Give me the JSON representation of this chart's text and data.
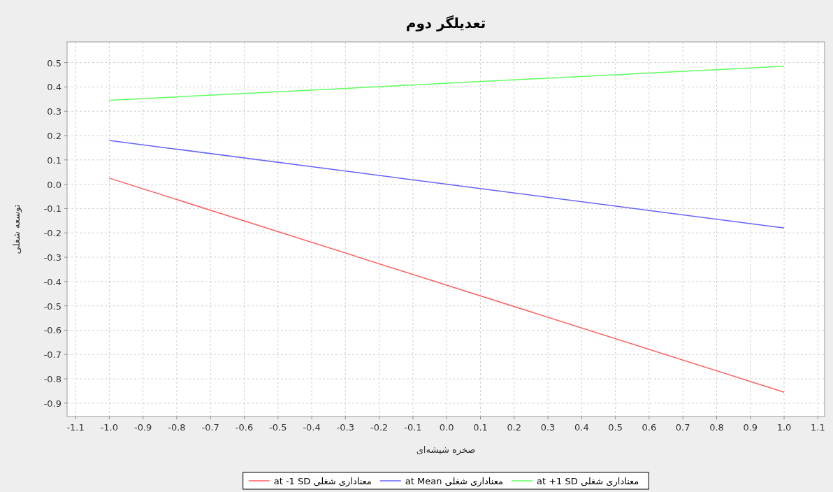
{
  "chart_data": {
    "type": "line",
    "title": "تعدیلگر دوم",
    "xlabel": "صخره شیشه‌ای",
    "ylabel": "توسعه شغلی",
    "x": [
      -1,
      1
    ],
    "series": [
      {
        "name": "معناداری شغلی at -1 SD",
        "color": "#ff5f5f",
        "values": [
          0.025,
          -0.855
        ]
      },
      {
        "name": "معناداری شغلی at Mean",
        "color": "#6464ff",
        "values": [
          0.18,
          -0.18
        ]
      },
      {
        "name": "معناداری شغلی at +1 SD",
        "color": "#5fff5f",
        "values": [
          0.345,
          0.485
        ]
      }
    ],
    "xlim": [
      -1.125,
      1.12
    ],
    "ylim": [
      -0.955,
      0.585
    ],
    "xticks": [
      {
        "value": -1.1,
        "label": "-1.1"
      },
      {
        "value": -1,
        "label": "-1.0"
      },
      {
        "value": -0.9,
        "label": "-0.9"
      },
      {
        "value": -0.8,
        "label": "-0.8"
      },
      {
        "value": -0.7,
        "label": "-0.7"
      },
      {
        "value": -0.6,
        "label": "-0.6"
      },
      {
        "value": -0.5,
        "label": "-0.5"
      },
      {
        "value": -0.4,
        "label": "-0.4"
      },
      {
        "value": -0.3,
        "label": "-0.3"
      },
      {
        "value": -0.2,
        "label": "-0.2"
      },
      {
        "value": -0.1,
        "label": "-0.1"
      },
      {
        "value": 0,
        "label": "0.0"
      },
      {
        "value": 0.1,
        "label": "0.1"
      },
      {
        "value": 0.2,
        "label": "0.2"
      },
      {
        "value": 0.3,
        "label": "0.3"
      },
      {
        "value": 0.4,
        "label": "0.4"
      },
      {
        "value": 0.5,
        "label": "0.5"
      },
      {
        "value": 0.6,
        "label": "0.6"
      },
      {
        "value": 0.7,
        "label": "0.7"
      },
      {
        "value": 0.8,
        "label": "0.8"
      },
      {
        "value": 0.9,
        "label": "0.9"
      },
      {
        "value": 1,
        "label": "1.0"
      },
      {
        "value": 1.1,
        "label": "1.1"
      }
    ],
    "yticks": [
      {
        "value": -0.9,
        "label": "-0.9"
      },
      {
        "value": -0.8,
        "label": "-0.8"
      },
      {
        "value": -0.7,
        "label": "-0.7"
      },
      {
        "value": -0.6,
        "label": "-0.6"
      },
      {
        "value": -0.5,
        "label": "-0.5"
      },
      {
        "value": -0.4,
        "label": "-0.4"
      },
      {
        "value": -0.3,
        "label": "-0.3"
      },
      {
        "value": -0.2,
        "label": "-0.2"
      },
      {
        "value": -0.1,
        "label": "-0.1"
      },
      {
        "value": 0,
        "label": "0.0"
      },
      {
        "value": 0.1,
        "label": "0.1"
      },
      {
        "value": 0.2,
        "label": "0.2"
      },
      {
        "value": 0.3,
        "label": "0.3"
      },
      {
        "value": 0.4,
        "label": "0.4"
      },
      {
        "value": 0.5,
        "label": "0.5"
      }
    ],
    "grid": true,
    "legend": "bottom"
  }
}
